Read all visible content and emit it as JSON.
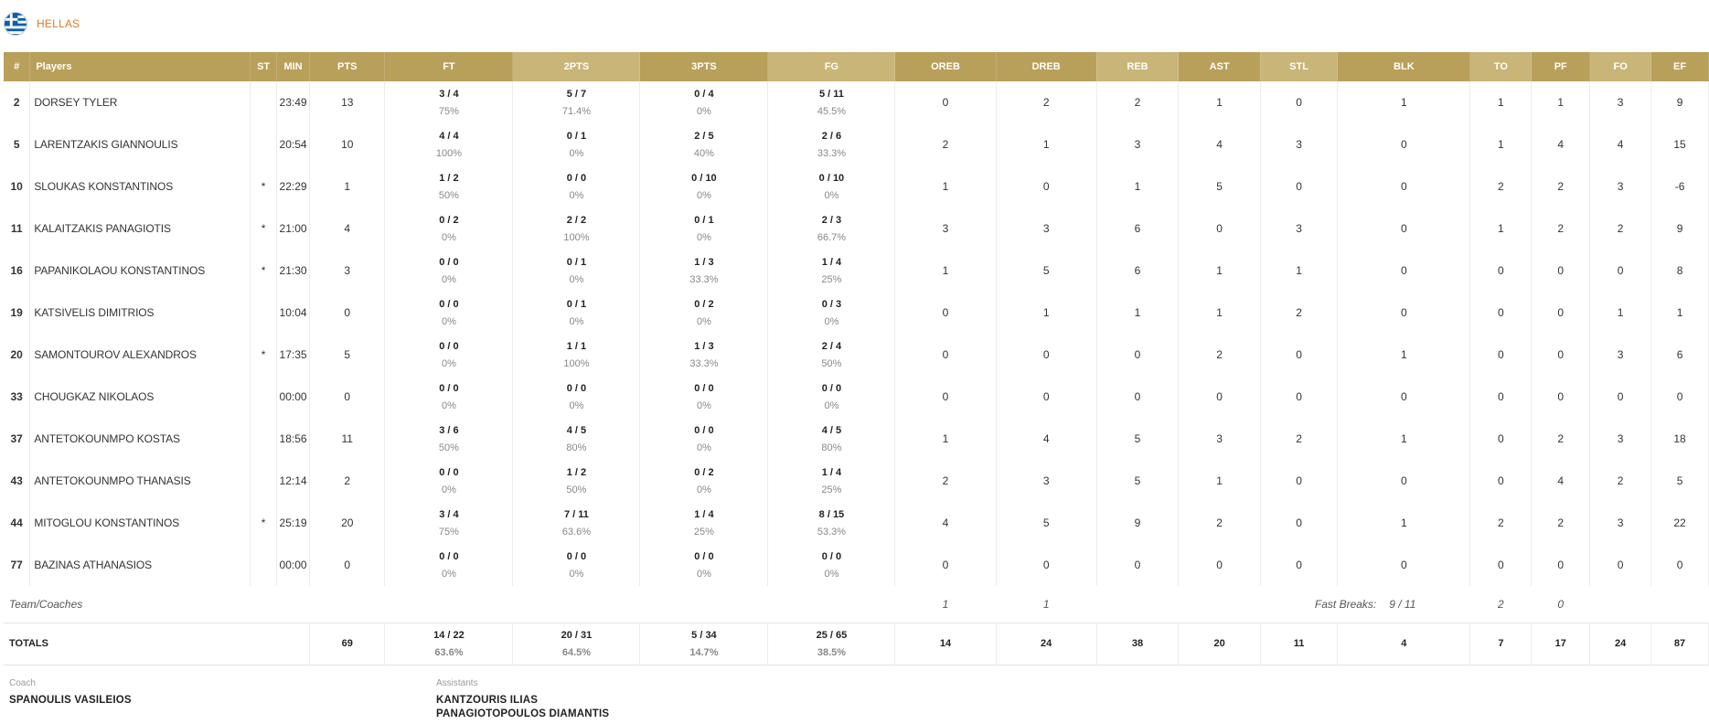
{
  "team": {
    "name": "HELLAS",
    "flag_icon": "greece-flag-icon"
  },
  "colors": {
    "header_gold": "#b8a05a",
    "header_gold_alt": "#c8b577",
    "team_name": "#e07b2a"
  },
  "columns": [
    "#",
    "Players",
    "ST",
    "MIN",
    "PTS",
    "FT",
    "2PTS",
    "3PTS",
    "FG",
    "OREB",
    "DREB",
    "REB",
    "AST",
    "STL",
    "BLK",
    "TO",
    "PF",
    "FO",
    "EF"
  ],
  "players": [
    {
      "num": "2",
      "name": "DORSEY TYLER",
      "st": "",
      "min": "23:49",
      "pts": "13",
      "ft": "3 / 4",
      "ft_pct": "75%",
      "p2": "5 / 7",
      "p2_pct": "71.4%",
      "p3": "0 / 4",
      "p3_pct": "0%",
      "fg": "5 / 11",
      "fg_pct": "45.5%",
      "oreb": "0",
      "dreb": "2",
      "reb": "2",
      "ast": "1",
      "stl": "0",
      "blk": "1",
      "to": "1",
      "pf": "1",
      "fo": "3",
      "ef": "9"
    },
    {
      "num": "5",
      "name": "LARENTZAKIS GIANNOULIS",
      "st": "",
      "min": "20:54",
      "pts": "10",
      "ft": "4 / 4",
      "ft_pct": "100%",
      "p2": "0 / 1",
      "p2_pct": "0%",
      "p3": "2 / 5",
      "p3_pct": "40%",
      "fg": "2 / 6",
      "fg_pct": "33.3%",
      "oreb": "2",
      "dreb": "1",
      "reb": "3",
      "ast": "4",
      "stl": "3",
      "blk": "0",
      "to": "1",
      "pf": "4",
      "fo": "4",
      "ef": "15"
    },
    {
      "num": "10",
      "name": "SLOUKAS KONSTANTINOS",
      "st": "*",
      "min": "22:29",
      "pts": "1",
      "ft": "1 / 2",
      "ft_pct": "50%",
      "p2": "0 / 0",
      "p2_pct": "0%",
      "p3": "0 / 10",
      "p3_pct": "0%",
      "fg": "0 / 10",
      "fg_pct": "0%",
      "oreb": "1",
      "dreb": "0",
      "reb": "1",
      "ast": "5",
      "stl": "0",
      "blk": "0",
      "to": "2",
      "pf": "2",
      "fo": "3",
      "ef": "-6"
    },
    {
      "num": "11",
      "name": "KALAITZAKIS PANAGIOTIS",
      "st": "*",
      "min": "21:00",
      "pts": "4",
      "ft": "0 / 2",
      "ft_pct": "0%",
      "p2": "2 / 2",
      "p2_pct": "100%",
      "p3": "0 / 1",
      "p3_pct": "0%",
      "fg": "2 / 3",
      "fg_pct": "66.7%",
      "oreb": "3",
      "dreb": "3",
      "reb": "6",
      "ast": "0",
      "stl": "3",
      "blk": "0",
      "to": "1",
      "pf": "2",
      "fo": "2",
      "ef": "9"
    },
    {
      "num": "16",
      "name": "PAPANIKOLAOU KONSTANTINOS",
      "st": "*",
      "min": "21:30",
      "pts": "3",
      "ft": "0 / 0",
      "ft_pct": "0%",
      "p2": "0 / 1",
      "p2_pct": "0%",
      "p3": "1 / 3",
      "p3_pct": "33.3%",
      "fg": "1 / 4",
      "fg_pct": "25%",
      "oreb": "1",
      "dreb": "5",
      "reb": "6",
      "ast": "1",
      "stl": "1",
      "blk": "0",
      "to": "0",
      "pf": "0",
      "fo": "0",
      "ef": "8"
    },
    {
      "num": "19",
      "name": "KATSIVELIS DIMITRIOS",
      "st": "",
      "min": "10:04",
      "pts": "0",
      "ft": "0 / 0",
      "ft_pct": "0%",
      "p2": "0 / 1",
      "p2_pct": "0%",
      "p3": "0 / 2",
      "p3_pct": "0%",
      "fg": "0 / 3",
      "fg_pct": "0%",
      "oreb": "0",
      "dreb": "1",
      "reb": "1",
      "ast": "1",
      "stl": "2",
      "blk": "0",
      "to": "0",
      "pf": "0",
      "fo": "1",
      "ef": "1"
    },
    {
      "num": "20",
      "name": "SAMONTOUROV ALEXANDROS",
      "st": "*",
      "min": "17:35",
      "pts": "5",
      "ft": "0 / 0",
      "ft_pct": "0%",
      "p2": "1 / 1",
      "p2_pct": "100%",
      "p3": "1 / 3",
      "p3_pct": "33.3%",
      "fg": "2 / 4",
      "fg_pct": "50%",
      "oreb": "0",
      "dreb": "0",
      "reb": "0",
      "ast": "2",
      "stl": "0",
      "blk": "1",
      "to": "0",
      "pf": "0",
      "fo": "3",
      "ef": "6"
    },
    {
      "num": "33",
      "name": "CHOUGKAZ NIKOLAOS",
      "st": "",
      "min": "00:00",
      "pts": "0",
      "ft": "0 / 0",
      "ft_pct": "0%",
      "p2": "0 / 0",
      "p2_pct": "0%",
      "p3": "0 / 0",
      "p3_pct": "0%",
      "fg": "0 / 0",
      "fg_pct": "0%",
      "oreb": "0",
      "dreb": "0",
      "reb": "0",
      "ast": "0",
      "stl": "0",
      "blk": "0",
      "to": "0",
      "pf": "0",
      "fo": "0",
      "ef": "0"
    },
    {
      "num": "37",
      "name": "ANTETOKOUNMPO KOSTAS",
      "st": "",
      "min": "18:56",
      "pts": "11",
      "ft": "3 / 6",
      "ft_pct": "50%",
      "p2": "4 / 5",
      "p2_pct": "80%",
      "p3": "0 / 0",
      "p3_pct": "0%",
      "fg": "4 / 5",
      "fg_pct": "80%",
      "oreb": "1",
      "dreb": "4",
      "reb": "5",
      "ast": "3",
      "stl": "2",
      "blk": "1",
      "to": "0",
      "pf": "2",
      "fo": "3",
      "ef": "18"
    },
    {
      "num": "43",
      "name": "ANTETOKOUNMPO THANASIS",
      "st": "",
      "min": "12:14",
      "pts": "2",
      "ft": "0 / 0",
      "ft_pct": "0%",
      "p2": "1 / 2",
      "p2_pct": "50%",
      "p3": "0 / 2",
      "p3_pct": "0%",
      "fg": "1 / 4",
      "fg_pct": "25%",
      "oreb": "2",
      "dreb": "3",
      "reb": "5",
      "ast": "1",
      "stl": "0",
      "blk": "0",
      "to": "0",
      "pf": "4",
      "fo": "2",
      "ef": "5"
    },
    {
      "num": "44",
      "name": "MITOGLOU KONSTANTINOS",
      "st": "*",
      "min": "25:19",
      "pts": "20",
      "ft": "3 / 4",
      "ft_pct": "75%",
      "p2": "7 / 11",
      "p2_pct": "63.6%",
      "p3": "1 / 4",
      "p3_pct": "25%",
      "fg": "8 / 15",
      "fg_pct": "53.3%",
      "oreb": "4",
      "dreb": "5",
      "reb": "9",
      "ast": "2",
      "stl": "0",
      "blk": "1",
      "to": "2",
      "pf": "2",
      "fo": "3",
      "ef": "22"
    },
    {
      "num": "77",
      "name": "BAZINAS ATHANASIOS",
      "st": "",
      "min": "00:00",
      "pts": "0",
      "ft": "0 / 0",
      "ft_pct": "0%",
      "p2": "0 / 0",
      "p2_pct": "0%",
      "p3": "0 / 0",
      "p3_pct": "0%",
      "fg": "0 / 0",
      "fg_pct": "0%",
      "oreb": "0",
      "dreb": "0",
      "reb": "0",
      "ast": "0",
      "stl": "0",
      "blk": "0",
      "to": "0",
      "pf": "0",
      "fo": "0",
      "ef": "0"
    }
  ],
  "team_coaches": {
    "label": "Team/Coaches",
    "oreb": "1",
    "dreb": "1",
    "fast_breaks_label": "Fast Breaks:",
    "fast_breaks_value": "9 / 11",
    "to": "2",
    "pf": "0"
  },
  "totals": {
    "label": "TOTALS",
    "pts": "69",
    "ft": "14 / 22",
    "ft_pct": "63.6%",
    "p2": "20 / 31",
    "p2_pct": "64.5%",
    "p3": "5 / 34",
    "p3_pct": "14.7%",
    "fg": "25 / 65",
    "fg_pct": "38.5%",
    "oreb": "14",
    "dreb": "24",
    "reb": "38",
    "ast": "20",
    "stl": "11",
    "blk": "4",
    "to": "7",
    "pf": "17",
    "fo": "24",
    "ef": "87"
  },
  "coach": {
    "label": "Coach",
    "name": "SPANOULIS VASILEIOS"
  },
  "assistants": {
    "label": "Assistants",
    "names": [
      "KANTZOURIS ILIAS",
      "PANAGIOTOPOULOS DIAMANTIS"
    ]
  }
}
